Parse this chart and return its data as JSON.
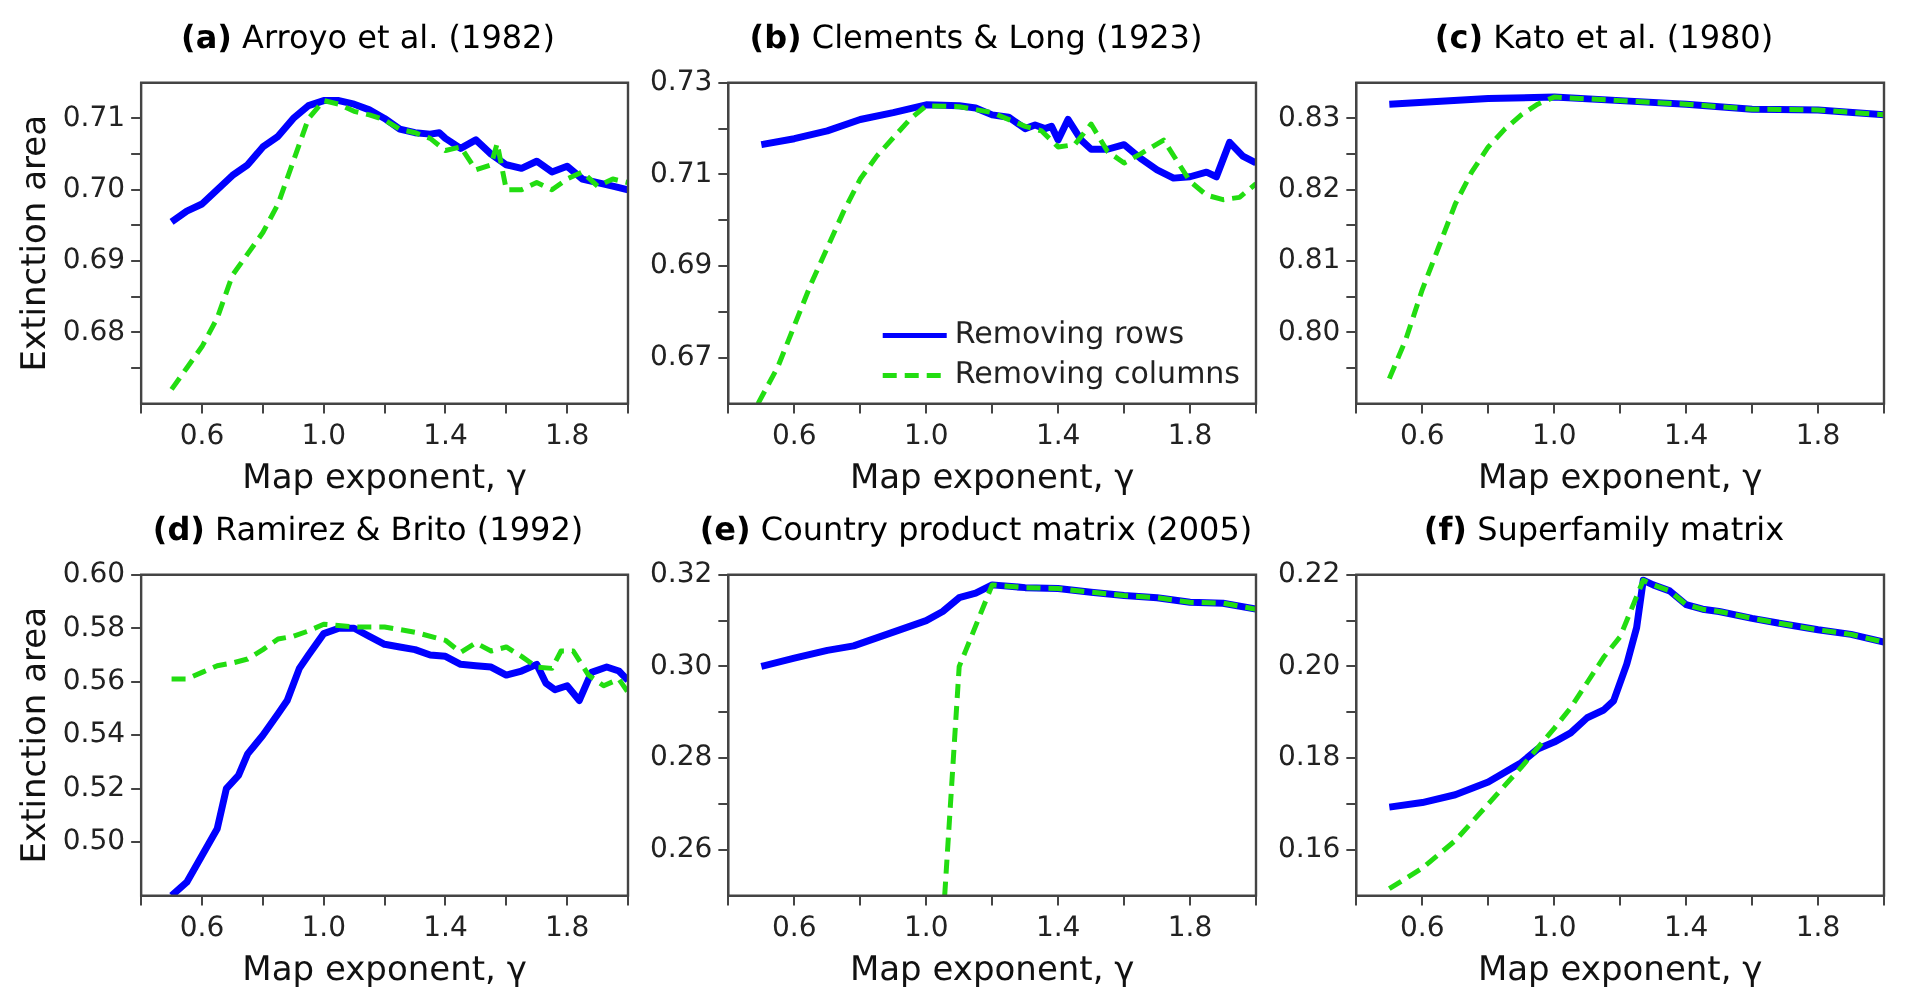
{
  "chart_data": [
    {
      "type": "line",
      "title": "(a) Arroyo et al. (1982)",
      "xlabel": "Map exponent, γ",
      "ylabel": "Extinction area",
      "xlim": [
        0.4,
        2.0
      ],
      "xticks": [
        {
          "value": 0.4,
          "label": null
        },
        0.6,
        {
          "value": 0.8,
          "label": null
        },
        {
          "value": 1,
          "label": "1.0"
        },
        {
          "value": 1.2,
          "label": null
        },
        1.4,
        {
          "value": 1.6,
          "label": null
        },
        1.8,
        {
          "value": 2,
          "label": null
        }
      ],
      "ylim": [
        0.67,
        0.715
      ],
      "yticks": [
        {
          "value": 0.675,
          "label": null
        },
        0.68,
        {
          "value": 0.685,
          "label": null
        },
        0.69,
        {
          "value": 0.695,
          "label": null
        },
        {
          "value": 0.7,
          "label": "0.70"
        },
        {
          "value": 0.705,
          "label": null
        },
        0.71
      ],
      "grid": false,
      "legend": false,
      "series": [
        {
          "color": "#0000ff",
          "line_style": "solid",
          "x": [
            0.5,
            0.55,
            0.6,
            0.65,
            0.7,
            0.75,
            0.8,
            0.85,
            0.9,
            0.95,
            1.0,
            1.05,
            1.1,
            1.15,
            1.2,
            1.25,
            1.3,
            1.35,
            1.38,
            1.4,
            1.45,
            1.5,
            1.55,
            1.6,
            1.65,
            1.7,
            1.75,
            1.8,
            1.85,
            1.9,
            1.95,
            2.0
          ],
          "values": [
            0.6955,
            0.697,
            0.698,
            0.7,
            0.702,
            0.7035,
            0.706,
            0.7075,
            0.71,
            0.7118,
            0.7125,
            0.7125,
            0.712,
            0.7112,
            0.71,
            0.7085,
            0.708,
            0.7078,
            0.708,
            0.7072,
            0.7058,
            0.707,
            0.705,
            0.7035,
            0.703,
            0.704,
            0.7025,
            0.7033,
            0.7015,
            0.701,
            0.7005,
            0.7
          ]
        },
        {
          "color": "#22dd11",
          "line_style": "dashed",
          "x": [
            0.5,
            0.55,
            0.6,
            0.65,
            0.7,
            0.75,
            0.8,
            0.85,
            0.9,
            0.95,
            1.0,
            1.05,
            1.1,
            1.15,
            1.2,
            1.25,
            1.3,
            1.35,
            1.4,
            1.45,
            1.5,
            1.55,
            1.57,
            1.6,
            1.65,
            1.7,
            1.75,
            1.8,
            1.85,
            1.9,
            1.95,
            2.0
          ],
          "values": [
            0.672,
            0.675,
            0.678,
            0.682,
            0.688,
            0.691,
            0.694,
            0.698,
            0.704,
            0.71,
            0.7125,
            0.712,
            0.711,
            0.7105,
            0.7098,
            0.7085,
            0.708,
            0.7072,
            0.7055,
            0.706,
            0.7028,
            0.7035,
            0.7065,
            0.7,
            0.7,
            0.701,
            0.7,
            0.7015,
            0.7025,
            0.7005,
            0.7015,
            0.701
          ]
        }
      ]
    },
    {
      "type": "line",
      "title": "(b) Clements & Long (1923)",
      "xlabel": "Map exponent, γ",
      "xlim": [
        0.4,
        2.0
      ],
      "xticks": [
        {
          "value": 0.4,
          "label": null
        },
        0.6,
        {
          "value": 0.8,
          "label": null
        },
        {
          "value": 1,
          "label": "1.0"
        },
        {
          "value": 1.2,
          "label": null
        },
        1.4,
        {
          "value": 1.6,
          "label": null
        },
        1.8,
        {
          "value": 2,
          "label": null
        }
      ],
      "ylim": [
        0.66,
        0.73
      ],
      "yticks": [
        0.67,
        {
          "value": 0.68,
          "label": null
        },
        0.69,
        {
          "value": 0.7,
          "label": null
        },
        0.71,
        {
          "value": 0.72,
          "label": null
        },
        0.73
      ],
      "grid": false,
      "legend": "bottom right",
      "series": [
        {
          "name": "Removing rows",
          "color": "#0000ff",
          "line_style": "solid",
          "x": [
            0.5,
            0.6,
            0.7,
            0.8,
            0.9,
            1.0,
            1.1,
            1.15,
            1.2,
            1.25,
            1.3,
            1.33,
            1.36,
            1.38,
            1.4,
            1.43,
            1.47,
            1.5,
            1.55,
            1.6,
            1.65,
            1.7,
            1.75,
            1.8,
            1.85,
            1.88,
            1.92,
            1.96,
            2.0
          ],
          "values": [
            0.7165,
            0.7178,
            0.7195,
            0.722,
            0.7235,
            0.7252,
            0.725,
            0.7245,
            0.723,
            0.7225,
            0.72,
            0.7208,
            0.72,
            0.7205,
            0.7175,
            0.722,
            0.7175,
            0.7155,
            0.7155,
            0.7165,
            0.7135,
            0.711,
            0.7092,
            0.7095,
            0.7105,
            0.7095,
            0.717,
            0.714,
            0.7125
          ]
        },
        {
          "name": "Removing columns",
          "color": "#22dd11",
          "line_style": "dashed",
          "x": [
            0.49,
            0.55,
            0.6,
            0.65,
            0.7,
            0.75,
            0.8,
            0.85,
            0.9,
            0.95,
            1.0,
            1.1,
            1.2,
            1.3,
            1.35,
            1.4,
            1.45,
            1.5,
            1.55,
            1.6,
            1.65,
            1.72,
            1.8,
            1.85,
            1.9,
            1.95,
            2.0
          ],
          "values": [
            0.66,
            0.668,
            0.677,
            0.686,
            0.694,
            0.702,
            0.709,
            0.714,
            0.718,
            0.722,
            0.725,
            0.7248,
            0.7235,
            0.7205,
            0.7195,
            0.716,
            0.7165,
            0.721,
            0.715,
            0.7125,
            0.7145,
            0.7175,
            0.7085,
            0.7055,
            0.7045,
            0.705,
            0.708
          ]
        }
      ]
    },
    {
      "type": "line",
      "title": "(c) Kato et al. (1980)",
      "xlabel": "Map exponent, γ",
      "xlim": [
        0.4,
        2.0
      ],
      "xticks": [
        {
          "value": 0.4,
          "label": null
        },
        0.6,
        {
          "value": 0.8,
          "label": null
        },
        {
          "value": 1,
          "label": "1.0"
        },
        {
          "value": 1.2,
          "label": null
        },
        1.4,
        {
          "value": 1.6,
          "label": null
        },
        1.8,
        {
          "value": 2,
          "label": null
        }
      ],
      "ylim": [
        0.79,
        0.835
      ],
      "yticks": [
        {
          "value": 0.795,
          "label": null
        },
        {
          "value": 0.8,
          "label": "0.80"
        },
        {
          "value": 0.805,
          "label": null
        },
        0.81,
        {
          "value": 0.815,
          "label": null
        },
        0.82,
        {
          "value": 0.825,
          "label": null
        },
        0.83
      ],
      "grid": false,
      "legend": false,
      "series": [
        {
          "color": "#0000ff",
          "line_style": "solid",
          "x": [
            0.5,
            0.8,
            1.0,
            1.2,
            1.4,
            1.6,
            1.8,
            2.0
          ],
          "values": [
            0.832,
            0.8328,
            0.833,
            0.8325,
            0.832,
            0.8313,
            0.8312,
            0.8305
          ]
        },
        {
          "color": "#22dd11",
          "line_style": "dashed",
          "x": [
            0.5,
            0.55,
            0.6,
            0.65,
            0.7,
            0.75,
            0.8,
            0.85,
            0.9,
            0.95,
            1.0,
            1.2,
            1.4,
            1.6,
            1.8,
            2.0
          ],
          "values": [
            0.7935,
            0.799,
            0.806,
            0.812,
            0.818,
            0.8225,
            0.826,
            0.8285,
            0.8305,
            0.832,
            0.833,
            0.8325,
            0.832,
            0.8313,
            0.8312,
            0.8305
          ]
        }
      ]
    },
    {
      "type": "line",
      "title": "(d) Ramirez & Brito (1992)",
      "xlabel": "Map exponent, γ",
      "ylabel": "Extinction area",
      "xlim": [
        0.4,
        2.0
      ],
      "xticks": [
        {
          "value": 0.4,
          "label": null
        },
        0.6,
        {
          "value": 0.8,
          "label": null
        },
        {
          "value": 1,
          "label": "1.0"
        },
        {
          "value": 1.2,
          "label": null
        },
        1.4,
        {
          "value": 1.6,
          "label": null
        },
        1.8,
        {
          "value": 2,
          "label": null
        }
      ],
      "ylim": [
        0.48,
        0.6
      ],
      "yticks": [
        {
          "value": 0.5,
          "label": "0.50"
        },
        0.52,
        0.54,
        0.56,
        0.58,
        {
          "value": 0.6,
          "label": "0.60"
        }
      ],
      "grid": false,
      "legend": false,
      "series": [
        {
          "color": "#0000ff",
          "line_style": "solid",
          "x": [
            0.5,
            0.55,
            0.6,
            0.65,
            0.68,
            0.72,
            0.75,
            0.8,
            0.85,
            0.88,
            0.92,
            0.95,
            1.0,
            1.05,
            1.1,
            1.15,
            1.2,
            1.25,
            1.3,
            1.35,
            1.4,
            1.45,
            1.5,
            1.55,
            1.6,
            1.65,
            1.7,
            1.73,
            1.76,
            1.8,
            1.84,
            1.88,
            1.93,
            1.97,
            2.0
          ],
          "values": [
            0.48,
            0.485,
            0.495,
            0.505,
            0.52,
            0.525,
            0.533,
            0.54,
            0.548,
            0.553,
            0.565,
            0.57,
            0.578,
            0.58,
            0.58,
            0.577,
            0.574,
            0.573,
            0.572,
            0.57,
            0.5695,
            0.5665,
            0.566,
            0.5655,
            0.5625,
            0.564,
            0.5665,
            0.5595,
            0.557,
            0.5585,
            0.553,
            0.5635,
            0.5655,
            0.564,
            0.5605
          ]
        },
        {
          "color": "#22dd11",
          "line_style": "dashed",
          "x": [
            0.5,
            0.55,
            0.6,
            0.65,
            0.7,
            0.75,
            0.8,
            0.85,
            0.9,
            0.95,
            1.0,
            1.1,
            1.2,
            1.3,
            1.4,
            1.45,
            1.5,
            1.55,
            1.6,
            1.65,
            1.7,
            1.75,
            1.78,
            1.82,
            1.87,
            1.92,
            1.97,
            2.0
          ],
          "values": [
            0.561,
            0.561,
            0.5635,
            0.566,
            0.567,
            0.5685,
            0.572,
            0.576,
            0.577,
            0.579,
            0.5815,
            0.5805,
            0.5805,
            0.5785,
            0.5755,
            0.571,
            0.5745,
            0.5715,
            0.573,
            0.5695,
            0.5655,
            0.565,
            0.5715,
            0.5715,
            0.5625,
            0.5585,
            0.561,
            0.556
          ]
        }
      ]
    },
    {
      "type": "line",
      "title": "(e) Country product matrix (2005)",
      "xlabel": "Map exponent, γ",
      "xlim": [
        0.4,
        2.0
      ],
      "xticks": [
        {
          "value": 0.4,
          "label": null
        },
        0.6,
        {
          "value": 0.8,
          "label": null
        },
        {
          "value": 1,
          "label": "1.0"
        },
        {
          "value": 1.2,
          "label": null
        },
        1.4,
        {
          "value": 1.6,
          "label": null
        },
        1.8,
        {
          "value": 2,
          "label": null
        }
      ],
      "ylim": [
        0.25,
        0.32
      ],
      "yticks": [
        0.26,
        {
          "value": 0.27,
          "label": null
        },
        0.28,
        {
          "value": 0.29,
          "label": null
        },
        {
          "value": 0.3,
          "label": "0.30"
        },
        {
          "value": 0.31,
          "label": null
        },
        0.32
      ],
      "grid": false,
      "legend": false,
      "series": [
        {
          "color": "#0000ff",
          "line_style": "solid",
          "x": [
            0.5,
            0.6,
            0.7,
            0.78,
            0.9,
            1.0,
            1.05,
            1.1,
            1.15,
            1.2,
            1.3,
            1.4,
            1.5,
            1.6,
            1.7,
            1.8,
            1.9,
            2.0
          ],
          "values": [
            0.3,
            0.3018,
            0.3035,
            0.3045,
            0.3075,
            0.31,
            0.312,
            0.315,
            0.316,
            0.3178,
            0.3172,
            0.317,
            0.3162,
            0.3155,
            0.315,
            0.314,
            0.3138,
            0.3125
          ]
        },
        {
          "color": "#22dd11",
          "line_style": "dashed",
          "x": [
            1.056,
            1.1,
            1.12,
            1.2,
            1.3,
            1.4,
            1.5,
            1.6,
            1.7,
            1.8,
            1.9,
            2.0
          ],
          "values": [
            0.25,
            0.3,
            0.3035,
            0.3178,
            0.3172,
            0.317,
            0.3162,
            0.3155,
            0.315,
            0.314,
            0.3138,
            0.3125
          ]
        }
      ]
    },
    {
      "type": "line",
      "title": "(f) Superfamily matrix",
      "xlabel": "Map exponent, γ",
      "xlim": [
        0.4,
        2.0
      ],
      "xticks": [
        {
          "value": 0.4,
          "label": null
        },
        0.6,
        {
          "value": 0.8,
          "label": null
        },
        {
          "value": 1,
          "label": "1.0"
        },
        {
          "value": 1.2,
          "label": null
        },
        1.4,
        {
          "value": 1.6,
          "label": null
        },
        1.8,
        {
          "value": 2,
          "label": null
        }
      ],
      "ylim": [
        0.15,
        0.22
      ],
      "yticks": [
        0.16,
        {
          "value": 0.17,
          "label": null
        },
        0.18,
        {
          "value": 0.19,
          "label": null
        },
        {
          "value": 0.2,
          "label": "0.20"
        },
        {
          "value": 0.21,
          "label": null
        },
        0.22
      ],
      "grid": false,
      "legend": false,
      "series": [
        {
          "color": "#0000ff",
          "line_style": "solid",
          "x": [
            0.5,
            0.6,
            0.7,
            0.8,
            0.9,
            0.95,
            1.0,
            1.05,
            1.1,
            1.15,
            1.18,
            1.22,
            1.25,
            1.27,
            1.3,
            1.35,
            1.4,
            1.45,
            1.5,
            1.6,
            1.7,
            1.8,
            1.9,
            2.0
          ],
          "values": [
            0.1693,
            0.1703,
            0.172,
            0.1748,
            0.179,
            0.182,
            0.1835,
            0.1855,
            0.1888,
            0.1905,
            0.1925,
            0.2005,
            0.2085,
            0.2188,
            0.2178,
            0.2165,
            0.2135,
            0.2125,
            0.212,
            0.2105,
            0.2092,
            0.208,
            0.207,
            0.2053
          ]
        },
        {
          "color": "#22dd11",
          "line_style": "dashed",
          "x": [
            0.5,
            0.6,
            0.7,
            0.8,
            0.9,
            1.0,
            1.05,
            1.1,
            1.15,
            1.2,
            1.27,
            1.3,
            1.35,
            1.4,
            1.45,
            1.5,
            1.6,
            1.7,
            1.8,
            1.9,
            2.0
          ],
          "values": [
            0.1515,
            0.156,
            0.162,
            0.17,
            0.178,
            0.1865,
            0.191,
            0.1965,
            0.202,
            0.2065,
            0.2188,
            0.2178,
            0.2165,
            0.2135,
            0.2125,
            0.212,
            0.2105,
            0.2092,
            0.208,
            0.207,
            0.2053
          ]
        }
      ]
    }
  ]
}
